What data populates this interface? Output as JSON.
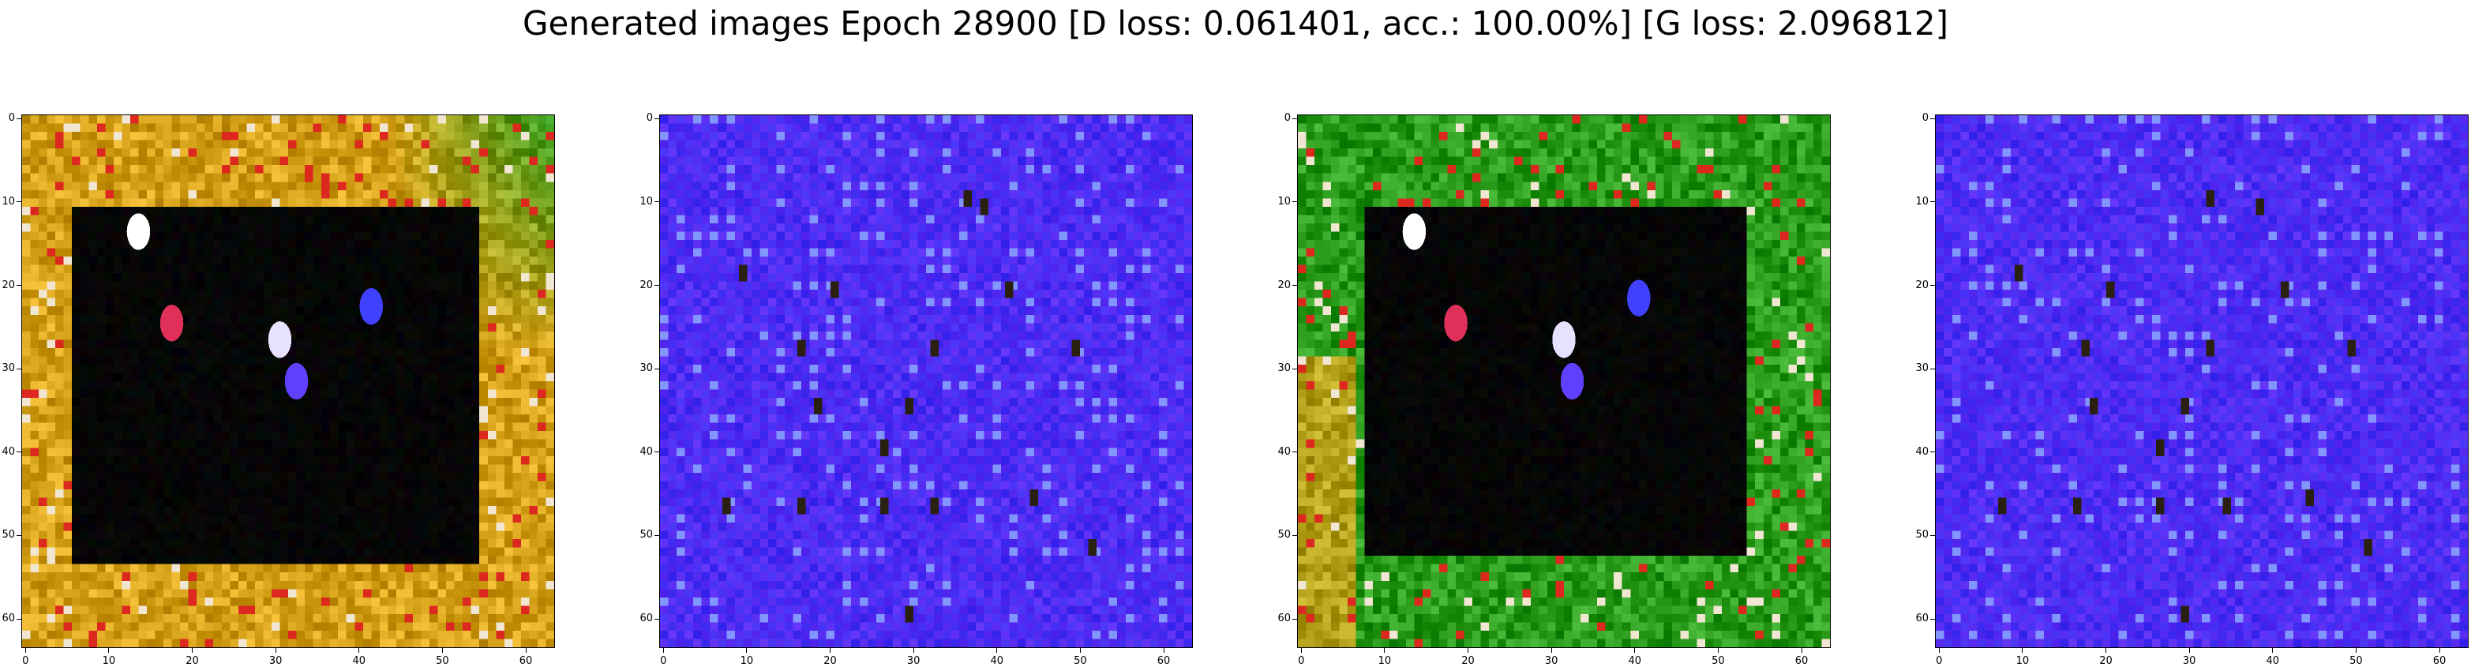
{
  "figure": {
    "title": "Generated images Epoch 28900 [D loss: 0.061401, acc.: 100.00%] [G loss: 2.096812]"
  },
  "chart_data": [
    {
      "type": "image",
      "xlim": [
        -0.5,
        63.5
      ],
      "ylim": [
        63.5,
        -0.5
      ],
      "xticks": [
        0,
        10,
        20,
        30,
        40,
        50,
        60
      ],
      "yticks": [
        0,
        10,
        20,
        30,
        40,
        50,
        60
      ],
      "grid": false,
      "content": {
        "style": "frame",
        "border_color": "#d4a017",
        "inner_color": "#000000",
        "accent_color": "#2a9a1a",
        "inner_box": [
          6,
          11,
          54,
          53
        ],
        "blobs": [
          {
            "x": 18,
            "y": 25,
            "color": "#e0305a"
          },
          {
            "x": 31,
            "y": 27,
            "color": "#e8e0ff"
          },
          {
            "x": 33,
            "y": 32,
            "color": "#6040ff"
          },
          {
            "x": 42,
            "y": 23,
            "color": "#4040ff"
          },
          {
            "x": 14,
            "y": 14,
            "color": "#ffffff"
          }
        ]
      }
    },
    {
      "type": "image",
      "xlim": [
        -0.5,
        63.5
      ],
      "ylim": [
        63.5,
        -0.5
      ],
      "xticks": [
        0,
        10,
        20,
        30,
        40,
        50,
        60
      ],
      "yticks": [
        0,
        10,
        20,
        30,
        40,
        50,
        60
      ],
      "grid": false,
      "content": {
        "style": "grid-noise",
        "base_color": "#4a2cf2",
        "dot_color": "#2a2010",
        "dots": [
          [
            10,
            19
          ],
          [
            17,
            28
          ],
          [
            33,
            28
          ],
          [
            50,
            28
          ],
          [
            19,
            35
          ],
          [
            30,
            35
          ],
          [
            27,
            40
          ],
          [
            8,
            47
          ],
          [
            17,
            47
          ],
          [
            27,
            47
          ],
          [
            33,
            47
          ],
          [
            45,
            46
          ],
          [
            52,
            52
          ],
          [
            30,
            60
          ],
          [
            37,
            10
          ],
          [
            39,
            11
          ],
          [
            21,
            21
          ],
          [
            42,
            21
          ]
        ]
      }
    },
    {
      "type": "image",
      "xlim": [
        -0.5,
        63.5
      ],
      "ylim": [
        63.5,
        -0.5
      ],
      "xticks": [
        0,
        10,
        20,
        30,
        40,
        50,
        60
      ],
      "yticks": [
        0,
        10,
        20,
        30,
        40,
        50,
        60
      ],
      "grid": false,
      "content": {
        "style": "frame",
        "border_color": "#2a9a1a",
        "inner_color": "#000000",
        "accent_color": "#d4a017",
        "inner_box": [
          8,
          11,
          53,
          52
        ],
        "blobs": [
          {
            "x": 19,
            "y": 25,
            "color": "#e0305a"
          },
          {
            "x": 32,
            "y": 27,
            "color": "#e8e0ff"
          },
          {
            "x": 33,
            "y": 32,
            "color": "#6040ff"
          },
          {
            "x": 41,
            "y": 22,
            "color": "#4040ff"
          },
          {
            "x": 14,
            "y": 14,
            "color": "#ffffff"
          }
        ]
      }
    },
    {
      "type": "image",
      "xlim": [
        -0.5,
        63.5
      ],
      "ylim": [
        63.5,
        -0.5
      ],
      "xticks": [
        0,
        10,
        20,
        30,
        40,
        50,
        60
      ],
      "yticks": [
        0,
        10,
        20,
        30,
        40,
        50,
        60
      ],
      "grid": false,
      "content": {
        "style": "grid-noise",
        "base_color": "#4a2cf2",
        "dot_color": "#2a2010",
        "dots": [
          [
            10,
            19
          ],
          [
            18,
            28
          ],
          [
            33,
            28
          ],
          [
            50,
            28
          ],
          [
            19,
            35
          ],
          [
            30,
            35
          ],
          [
            27,
            40
          ],
          [
            8,
            47
          ],
          [
            17,
            47
          ],
          [
            27,
            47
          ],
          [
            35,
            47
          ],
          [
            45,
            46
          ],
          [
            52,
            52
          ],
          [
            30,
            60
          ],
          [
            33,
            10
          ],
          [
            39,
            11
          ],
          [
            21,
            21
          ],
          [
            42,
            21
          ]
        ]
      }
    }
  ]
}
